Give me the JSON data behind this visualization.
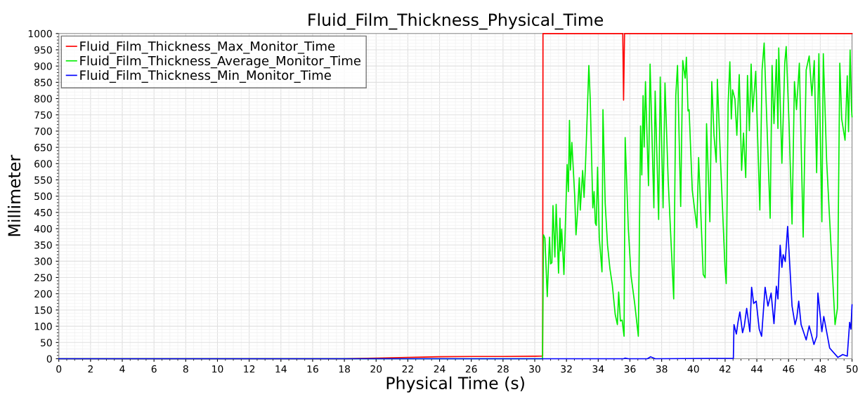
{
  "chart_data": {
    "type": "line",
    "title": "Fluid_Film_Thickness_Physical_Time",
    "xlabel": "Physical Time (s)",
    "ylabel": "Millimeter",
    "xlim": [
      0,
      50
    ],
    "xticks": [
      0,
      2,
      4,
      6,
      8,
      10,
      12,
      14,
      16,
      18,
      20,
      22,
      24,
      26,
      28,
      30,
      32,
      34,
      36,
      38,
      40,
      42,
      44,
      46,
      48,
      50
    ],
    "ylim": [
      0,
      1000
    ],
    "yticks": [
      0,
      50,
      100,
      150,
      200,
      250,
      300,
      350,
      400,
      450,
      500,
      550,
      600,
      650,
      700,
      750,
      800,
      850,
      900,
      950,
      1000
    ],
    "grid": true,
    "legend": "top left",
    "marker": "none",
    "line_style": "solid",
    "series": [
      {
        "name": "Fluid_Film_Thickness_Max_Monitor_Time",
        "color": "#ff0000",
        "x": [
          0,
          18,
          20,
          22,
          24,
          26,
          28,
          30.4,
          30.5,
          30.52,
          35.55,
          35.6,
          35.66,
          50
        ],
        "values": [
          0,
          0,
          2,
          4,
          6,
          7,
          7,
          8,
          8,
          1000,
          1000,
          795,
          1000,
          1000
        ]
      },
      {
        "name": "Fluid_Film_Thickness_Average_Monitor_Time",
        "color": "#00ee00",
        "x": [
          0,
          30.49,
          30.55,
          30.64,
          30.79,
          30.93,
          31.0,
          31.08,
          31.15,
          31.27,
          31.35,
          31.5,
          31.59,
          31.63,
          31.7,
          31.84,
          32.04,
          32.12,
          32.19,
          32.25,
          32.34,
          32.52,
          32.6,
          32.69,
          32.81,
          32.87,
          33.02,
          33.11,
          33.2,
          33.27,
          33.41,
          33.5,
          33.66,
          33.74,
          33.82,
          33.88,
          33.96,
          34.07,
          34.24,
          34.3,
          34.44,
          34.59,
          34.74,
          34.89,
          35.07,
          35.21,
          35.29,
          35.4,
          35.51,
          35.63,
          35.7,
          35.9,
          36.07,
          36.3,
          36.53,
          36.67,
          36.75,
          36.83,
          36.9,
          36.98,
          37.17,
          37.27,
          37.51,
          37.59,
          37.81,
          37.91,
          38.09,
          38.21,
          38.41,
          38.76,
          38.89,
          39.0,
          39.2,
          39.33,
          39.48,
          39.56,
          39.66,
          39.73,
          39.93,
          40.22,
          40.33,
          40.62,
          40.74,
          40.83,
          41.04,
          41.16,
          41.3,
          41.44,
          41.51,
          41.73,
          41.99,
          42.07,
          42.19,
          42.3,
          42.39,
          42.47,
          42.62,
          42.74,
          42.89,
          43.04,
          43.16,
          43.3,
          43.41,
          43.53,
          43.64,
          43.74,
          43.93,
          44.04,
          44.19,
          44.33,
          44.46,
          44.84,
          44.96,
          45.08,
          45.23,
          45.33,
          45.38,
          45.58,
          45.76,
          45.85,
          46.03,
          46.22,
          46.37,
          46.5,
          46.68,
          46.92,
          47.11,
          47.3,
          47.47,
          47.62,
          47.77,
          47.91,
          48.1,
          48.19,
          48.4,
          48.93,
          49.08,
          49.23,
          49.35,
          49.56,
          49.7,
          49.78,
          49.88,
          49.97,
          50.0
        ],
        "values": [
          0,
          0,
          381,
          371,
          191,
          374,
          292,
          295,
          471,
          313,
          475,
          263,
          432,
          331,
          399,
          259,
          597,
          514,
          733,
          580,
          665,
          500,
          381,
          443,
          557,
          457,
          579,
          496,
          597,
          694,
          902,
          795,
          464,
          514,
          417,
          410,
          589,
          371,
          267,
          766,
          478,
          349,
          277,
          227,
          137,
          105,
          205,
          116,
          119,
          69,
          680,
          399,
          256,
          170,
          69,
          716,
          565,
          809,
          651,
          852,
          532,
          906,
          464,
          823,
          428,
          866,
          464,
          848,
          550,
          184,
          809,
          902,
          468,
          917,
          863,
          927,
          762,
          766,
          518,
          403,
          619,
          259,
          249,
          723,
          421,
          852,
          687,
          604,
          859,
          586,
          284,
          231,
          784,
          913,
          737,
          827,
          798,
          687,
          874,
          579,
          694,
          557,
          871,
          701,
          906,
          759,
          884,
          698,
          457,
          888,
          971,
          432,
          902,
          723,
          920,
          708,
          956,
          601,
          909,
          960,
          723,
          414,
          852,
          766,
          909,
          374,
          888,
          931,
          809,
          917,
          572,
          938,
          421,
          938,
          608,
          105,
          155,
          909,
          737,
          672,
          870,
          698,
          949,
          766,
          744
        ]
      },
      {
        "name": "Fluid_Film_Thickness_Min_Monitor_Time",
        "color": "#0000ff",
        "x": [
          0,
          35.6,
          35.7,
          35.9,
          37.1,
          37.3,
          37.6,
          41.1,
          42.52,
          42.56,
          42.71,
          42.81,
          42.93,
          43.1,
          43.21,
          43.36,
          43.56,
          43.67,
          43.8,
          43.96,
          44.15,
          44.3,
          44.52,
          44.7,
          44.9,
          45.08,
          45.23,
          45.33,
          45.47,
          45.58,
          45.66,
          45.79,
          45.94,
          46.22,
          46.41,
          46.52,
          46.64,
          46.79,
          47.11,
          47.3,
          47.6,
          47.78,
          47.85,
          48.1,
          48.22,
          48.59,
          49.11,
          49.41,
          49.7,
          49.85,
          49.93,
          50.0
        ],
        "values": [
          0,
          0,
          2,
          0,
          0,
          6,
          0,
          1,
          1,
          105,
          76,
          112,
          144,
          80,
          101,
          155,
          83,
          220,
          170,
          177,
          91,
          69,
          220,
          162,
          202,
          108,
          223,
          184,
          349,
          281,
          320,
          299,
          407,
          162,
          105,
          126,
          177,
          105,
          58,
          101,
          44,
          69,
          202,
          83,
          130,
          33,
          4,
          13,
          8,
          112,
          91,
          166
        ]
      }
    ]
  }
}
